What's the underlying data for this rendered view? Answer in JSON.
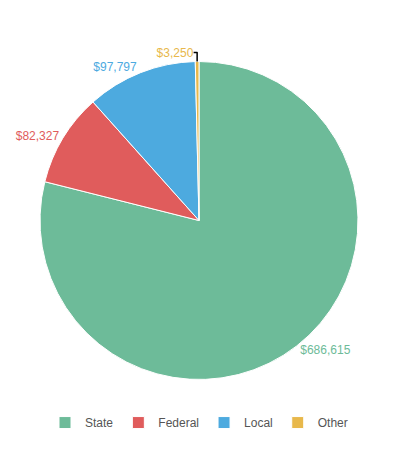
{
  "chart_data": {
    "type": "pie",
    "categories": [
      "State",
      "Federal",
      "Local",
      "Other"
    ],
    "values": [
      686615,
      82327,
      97797,
      3250
    ],
    "value_labels": [
      "$686,615",
      "$82,327",
      "$97,797",
      "$3,250"
    ],
    "colors": [
      "#6dbb99",
      "#e05c5c",
      "#4daadf",
      "#e8b84b"
    ],
    "data_labels": true,
    "legend": "bottom"
  }
}
